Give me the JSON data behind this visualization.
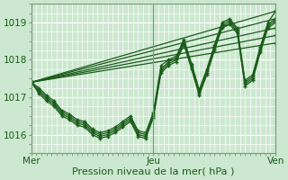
{
  "title": "",
  "xlabel": "Pression niveau de la mer( hPa )",
  "xtick_labels": [
    "Mer",
    "Jeu",
    "Ven"
  ],
  "xtick_positions": [
    0,
    48,
    96
  ],
  "ylim": [
    1015.5,
    1019.5
  ],
  "yticks": [
    1016,
    1017,
    1018,
    1019
  ],
  "xlim": [
    0,
    96
  ],
  "bg_color": "#cce8d0",
  "plot_bg_color": "#cce8d0",
  "grid_color": "#ffffff",
  "line_color": "#1a5c1a",
  "marker_color": "#1a5c1a",
  "straight_lines": [
    {
      "x0": 0,
      "y0": 1017.4,
      "x1": 96,
      "y1": 1019.3
    },
    {
      "x0": 0,
      "y0": 1017.4,
      "x1": 96,
      "y1": 1019.1
    },
    {
      "x0": 0,
      "y0": 1017.4,
      "x1": 96,
      "y1": 1018.85
    },
    {
      "x0": 0,
      "y0": 1017.4,
      "x1": 96,
      "y1": 1018.65
    },
    {
      "x0": 0,
      "y0": 1017.4,
      "x1": 96,
      "y1": 1018.45
    }
  ],
  "zigzag_x": [
    0,
    3,
    6,
    9,
    12,
    15,
    18,
    21,
    24,
    27,
    30,
    33,
    36,
    39,
    42,
    45,
    48,
    51,
    54,
    57,
    60,
    63,
    66,
    69,
    72,
    75,
    78,
    81,
    84,
    87,
    90,
    93,
    96
  ],
  "zigzag_lines": [
    [
      1017.4,
      1017.25,
      1017.05,
      1016.9,
      1016.65,
      1016.55,
      1016.4,
      1016.35,
      1016.15,
      1016.05,
      1016.1,
      1016.2,
      1016.35,
      1016.5,
      1016.1,
      1016.05,
      1016.6,
      1017.85,
      1018.0,
      1018.1,
      1018.55,
      1017.9,
      1017.2,
      1017.75,
      1018.4,
      1019.0,
      1019.1,
      1018.85,
      1017.45,
      1017.6,
      1018.35,
      1019.0,
      1019.3
    ],
    [
      1017.4,
      1017.2,
      1017.0,
      1016.85,
      1016.6,
      1016.5,
      1016.35,
      1016.3,
      1016.1,
      1016.0,
      1016.05,
      1016.15,
      1016.3,
      1016.45,
      1016.05,
      1016.0,
      1016.55,
      1017.75,
      1017.95,
      1018.05,
      1018.5,
      1017.85,
      1017.15,
      1017.7,
      1018.35,
      1018.95,
      1019.05,
      1018.8,
      1017.4,
      1017.55,
      1018.3,
      1018.95,
      1019.1
    ],
    [
      1017.4,
      1017.15,
      1016.95,
      1016.8,
      1016.55,
      1016.45,
      1016.3,
      1016.25,
      1016.05,
      1015.95,
      1016.0,
      1016.1,
      1016.25,
      1016.4,
      1016.0,
      1015.95,
      1016.5,
      1017.7,
      1017.9,
      1018.0,
      1018.45,
      1017.8,
      1017.1,
      1017.65,
      1018.3,
      1018.9,
      1019.0,
      1018.75,
      1017.35,
      1017.5,
      1018.25,
      1018.9,
      1019.05
    ],
    [
      1017.4,
      1017.1,
      1016.9,
      1016.75,
      1016.5,
      1016.4,
      1016.25,
      1016.2,
      1016.0,
      1015.9,
      1015.95,
      1016.05,
      1016.2,
      1016.35,
      1015.95,
      1015.9,
      1016.45,
      1017.65,
      1017.85,
      1017.95,
      1018.4,
      1017.75,
      1017.05,
      1017.6,
      1018.25,
      1018.85,
      1018.95,
      1018.7,
      1017.3,
      1017.45,
      1018.2,
      1018.85,
      1019.0
    ]
  ]
}
